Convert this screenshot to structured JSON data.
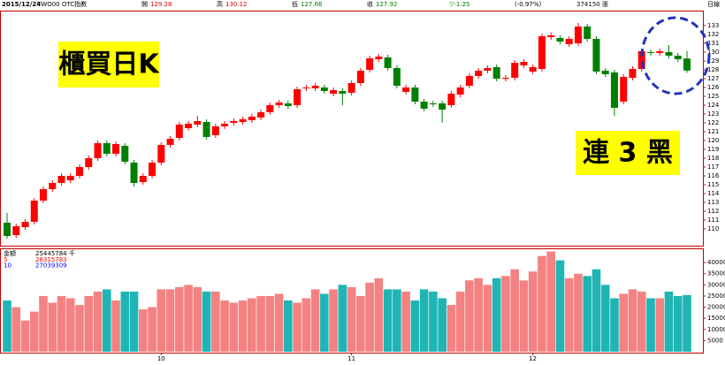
{
  "header": {
    "date": "2015/12/24",
    "symbol": "TWO00 OTC指數",
    "open_label": "開",
    "open": 129.28,
    "high_label": "高",
    "high": 130.12,
    "low_label": "低",
    "low": 127.66,
    "close_label": "收",
    "close": 127.92,
    "change": "▽-1.25",
    "change_pct": "(-0.97%)",
    "volume": "374150 張",
    "period": "日線"
  },
  "chart_data": [
    {
      "type": "candlestick",
      "annotations": [
        "櫃買日K",
        "連 3 黑"
      ],
      "up_color": "#ff0000",
      "down_color": "#008000",
      "categories": [
        null,
        null,
        null,
        null,
        null,
        null,
        null,
        null,
        null,
        null,
        null,
        null,
        null,
        null,
        null,
        null,
        null,
        "10",
        null,
        null,
        null,
        null,
        null,
        null,
        null,
        null,
        null,
        null,
        null,
        null,
        null,
        null,
        null,
        null,
        null,
        null,
        null,
        null,
        "11",
        null,
        null,
        null,
        null,
        null,
        null,
        null,
        null,
        null,
        null,
        null,
        null,
        null,
        null,
        null,
        null,
        null,
        null,
        null,
        "12",
        null,
        null,
        null,
        null,
        null,
        null,
        null,
        null,
        null,
        null,
        null,
        null,
        null,
        null,
        null,
        null,
        null
      ],
      "open": [
        110.7,
        109.3,
        110.2,
        110.8,
        113.2,
        114.5,
        115.2,
        115.5,
        116,
        117,
        118,
        119.7,
        118.5,
        119.4,
        117.5,
        115.3,
        116,
        117.5,
        119.5,
        120.3,
        121.4,
        121.8,
        122.1,
        120.6,
        121.6,
        122,
        122.1,
        122.3,
        122.6,
        123.2,
        124,
        124.2,
        124,
        125.9,
        125.9,
        126,
        125.3,
        125.6,
        125.4,
        126.5,
        128,
        129.2,
        129.4,
        128.2,
        125.5,
        126,
        124.4,
        124.2,
        124.2,
        124,
        125.2,
        126.2,
        127.3,
        127.9,
        128.3,
        127,
        127.1,
        128.5,
        127.8,
        128.1,
        131.7,
        131.6,
        130.9,
        131,
        132.9,
        131.5,
        127.9,
        127.7,
        124.4,
        127.1,
        128.1,
        130,
        129.9,
        130,
        129.6,
        129.28
      ],
      "high": [
        111.8,
        110.6,
        111.1,
        113.5,
        114.8,
        115.5,
        116.3,
        116.3,
        117.3,
        118.3,
        120,
        120,
        119.9,
        119.7,
        117.8,
        116.3,
        117.8,
        119.8,
        120.5,
        122.1,
        122.2,
        122.8,
        122.4,
        121.9,
        122.2,
        122.5,
        122.7,
        123,
        123.5,
        124.3,
        124.6,
        124.5,
        126.1,
        126.3,
        126.5,
        126.3,
        126,
        125.9,
        126.8,
        128.2,
        129.6,
        129.8,
        129.7,
        128.5,
        126.3,
        126.3,
        124.7,
        124.5,
        124.5,
        125.6,
        126.3,
        127.6,
        128.2,
        128.5,
        128.6,
        127.4,
        129.1,
        129.2,
        128.6,
        132.1,
        132.2,
        131.9,
        131.8,
        133.3,
        133.2,
        131.8,
        128.2,
        128,
        127.5,
        128.4,
        130.4,
        130.3,
        130.4,
        130.8,
        129.9,
        130.12
      ],
      "low": [
        108.9,
        109,
        109.9,
        110.5,
        112.9,
        114.2,
        114.9,
        115.2,
        115.7,
        116.7,
        117.7,
        118.2,
        118.2,
        117.3,
        114.8,
        115,
        115.7,
        117.2,
        119.2,
        120,
        121.1,
        121.5,
        120.1,
        120.3,
        121.3,
        121.7,
        121.8,
        122,
        122.3,
        122.9,
        123.7,
        123.6,
        123.7,
        125.6,
        125.6,
        125.3,
        125,
        124,
        125.1,
        126.2,
        127.7,
        128.9,
        127.9,
        125.9,
        125.2,
        124.1,
        123.3,
        123.8,
        122,
        123.7,
        124.9,
        125.9,
        127,
        127.6,
        126.7,
        126.7,
        126.8,
        128.2,
        127.5,
        127.8,
        131.4,
        130.9,
        130.6,
        130.7,
        131.2,
        127.5,
        127.2,
        122.8,
        124.1,
        126.8,
        127.8,
        129.6,
        129.6,
        129.3,
        128.9,
        127.66
      ],
      "close": [
        109.2,
        110.3,
        110.8,
        113.2,
        114.5,
        115.2,
        116,
        116,
        117,
        118,
        119.7,
        118.5,
        119.6,
        117.6,
        115.2,
        116,
        117.5,
        119.5,
        120.2,
        121.8,
        121.9,
        122.2,
        120.4,
        121.6,
        121.9,
        122.2,
        122.4,
        122.7,
        123.2,
        124,
        124.3,
        123.9,
        125.8,
        126,
        126.2,
        125.6,
        125.7,
        125.3,
        126.5,
        127.9,
        129.3,
        129.5,
        128.2,
        126.2,
        126,
        124.4,
        123.6,
        124.1,
        123.5,
        125.3,
        126,
        127.3,
        127.9,
        128.2,
        127,
        127.1,
        128.8,
        128.9,
        128.3,
        131.8,
        131.9,
        131.2,
        131.5,
        132.9,
        131.5,
        127.8,
        127.5,
        123.7,
        127.2,
        128.1,
        130.1,
        129.9,
        130.1,
        129.6,
        129.2,
        127.92
      ],
      "ylim": [
        108.5,
        134.5
      ],
      "yticks": [
        110,
        111,
        112,
        113,
        114,
        115,
        116,
        117,
        118,
        119,
        120,
        121,
        122,
        123,
        124,
        125,
        126,
        127,
        128,
        129,
        130,
        131,
        132,
        133
      ],
      "grid": false
    },
    {
      "type": "bar",
      "series": [
        {
          "name": "金額",
          "label": "25445784 千",
          "up_color": "#f48282",
          "down_color": "#1fb5b5",
          "values": [
            23000,
            20000,
            14000,
            18000,
            25000,
            22000,
            25000,
            24000,
            21000,
            25000,
            27000,
            28000,
            23000,
            27000,
            27000,
            19000,
            20000,
            28000,
            28000,
            29000,
            30000,
            29000,
            27000,
            27000,
            23000,
            22000,
            23000,
            24000,
            25000,
            25000,
            26000,
            23000,
            22000,
            24000,
            28000,
            26000,
            28000,
            30000,
            29000,
            25000,
            31000,
            33000,
            28000,
            28000,
            27000,
            23000,
            28000,
            27000,
            24000,
            21000,
            27000,
            32000,
            33000,
            30000,
            33000,
            34000,
            37000,
            32000,
            36000,
            43000,
            45000,
            41000,
            33000,
            35000,
            34000,
            37000,
            30000,
            24000,
            26000,
            28000,
            27000,
            24000,
            24000,
            27000,
            25000,
            25445
          ]
        }
      ],
      "moving_averages": [
        {
          "name": "5",
          "value": 26315783,
          "color": "#ff0000"
        },
        {
          "name": "10",
          "value": 27039309,
          "color": "#0000ff"
        }
      ],
      "ylim": [
        0,
        46000
      ],
      "yticks": [
        5000,
        10000,
        15000,
        20000,
        25000,
        30000,
        35000,
        40000
      ]
    }
  ]
}
